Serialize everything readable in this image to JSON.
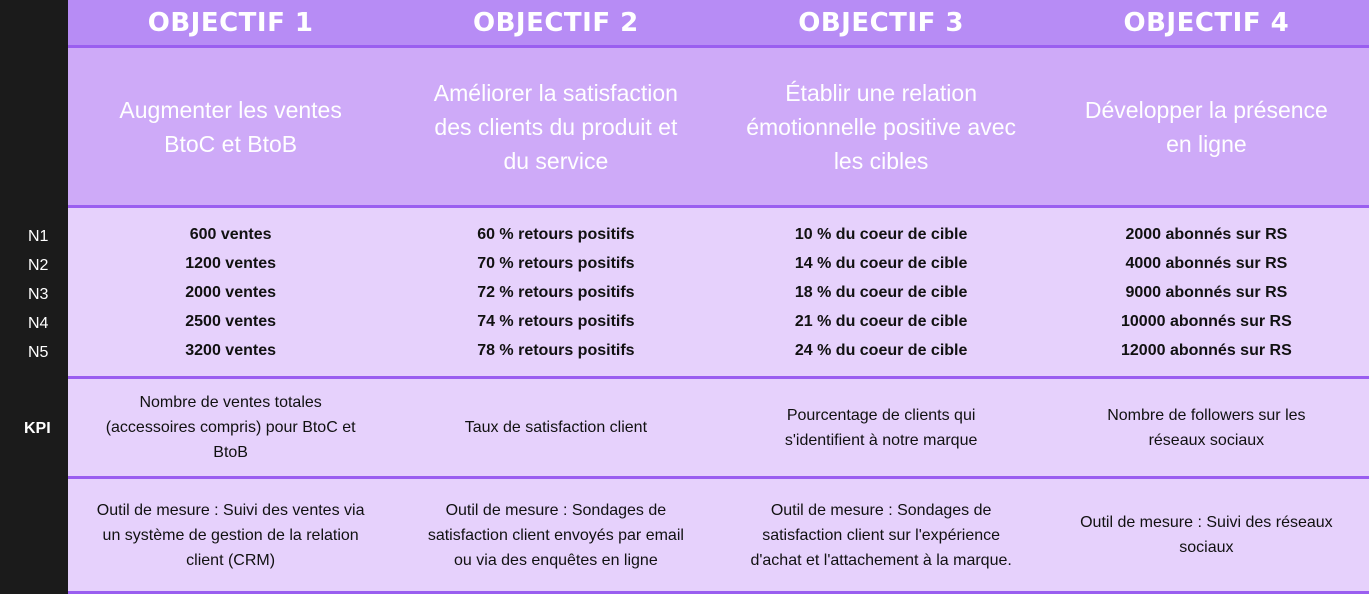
{
  "levels": [
    "N1",
    "N2",
    "N3",
    "N4",
    "N5"
  ],
  "kpi_label": "KPI",
  "colors": {
    "header": "#b78cf5",
    "objective": "#ceaaf8",
    "body": "#e6d1fc",
    "border": "#9a5ef0",
    "sidebar": "#1b1b1b"
  },
  "objectives": [
    {
      "title": "OBJECTIF 1",
      "description": "Augmenter les ventes BtoC et BtoB",
      "targets": [
        "600 ventes",
        "1200 ventes",
        "2000 ventes",
        "2500 ventes",
        "3200 ventes"
      ],
      "kpi": "Nombre de ventes totales (accessoires compris) pour BtoC et BtoB",
      "tool": "Outil de mesure : Suivi des ventes via un système de gestion de la relation client (CRM)"
    },
    {
      "title": "OBJECTIF 2",
      "description": "Améliorer la satisfaction des clients du produit et du service",
      "targets": [
        "60 % retours positifs",
        "70 % retours positifs",
        "72 % retours positifs",
        "74 % retours positifs",
        "78 % retours positifs"
      ],
      "kpi": "Taux de satisfaction client",
      "tool": "Outil de mesure : Sondages de satisfaction client envoyés par email ou via des enquêtes en ligne"
    },
    {
      "title": "OBJECTIF 3",
      "description": "Établir une relation émotionnelle positive avec les cibles",
      "targets": [
        "10 % du coeur de cible",
        "14 % du coeur de cible",
        "18 % du coeur de cible",
        "21 % du coeur de cible",
        "24 % du coeur de cible"
      ],
      "kpi": "Pourcentage de clients qui s'identifient à notre marque",
      "tool": "Outil de mesure : Sondages de satisfaction client sur l'expérience d'achat et l'attachement à la marque."
    },
    {
      "title": "OBJECTIF 4",
      "description": "Développer la présence en ligne",
      "targets": [
        "2000 abonnés sur RS",
        "4000 abonnés sur RS",
        "9000 abonnés sur RS",
        "10000 abonnés sur RS",
        "12000 abonnés sur RS"
      ],
      "kpi": "Nombre de followers sur les réseaux sociaux",
      "tool": "Outil de mesure : Suivi des réseaux sociaux"
    }
  ]
}
